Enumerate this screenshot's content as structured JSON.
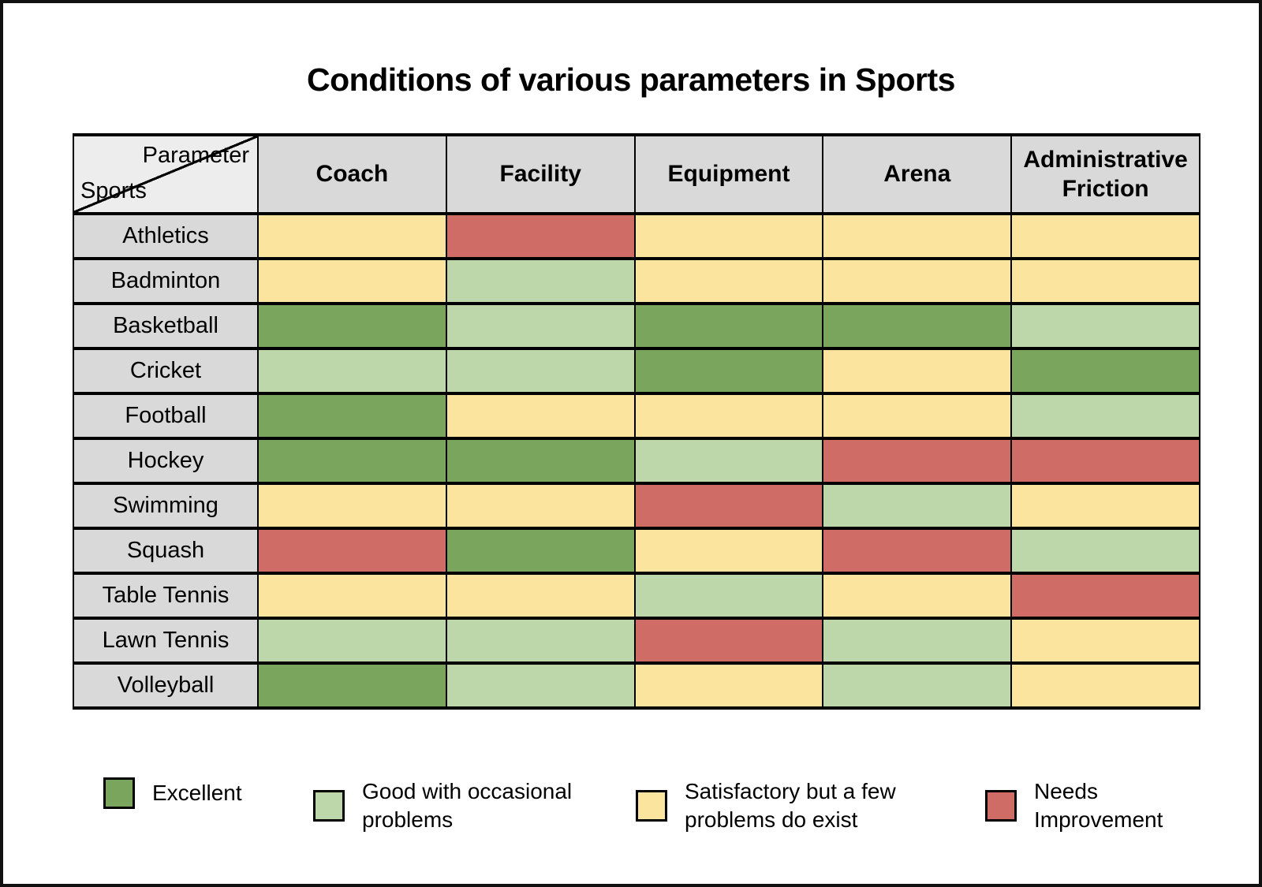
{
  "title": "Conditions of various parameters in Sports",
  "corner": {
    "top_label": "Parameter",
    "bottom_label": "Sports"
  },
  "chart_data": {
    "type": "heatmap",
    "title": "Conditions of various parameters in Sports",
    "columns": [
      "Coach",
      "Facility",
      "Equipment",
      "Arena",
      "Administrative Friction"
    ],
    "rows": [
      "Athletics",
      "Badminton",
      "Basketball",
      "Cricket",
      "Football",
      "Hockey",
      "Swimming",
      "Squash",
      "Table Tennis",
      "Lawn Tennis",
      "Volleyball"
    ],
    "values": [
      [
        "satisfactory",
        "needs",
        "satisfactory",
        "satisfactory",
        "satisfactory"
      ],
      [
        "satisfactory",
        "good",
        "satisfactory",
        "satisfactory",
        "satisfactory"
      ],
      [
        "excellent",
        "good",
        "excellent",
        "excellent",
        "good"
      ],
      [
        "good",
        "good",
        "excellent",
        "satisfactory",
        "excellent"
      ],
      [
        "excellent",
        "satisfactory",
        "satisfactory",
        "satisfactory",
        "good"
      ],
      [
        "excellent",
        "excellent",
        "good",
        "needs",
        "needs"
      ],
      [
        "satisfactory",
        "satisfactory",
        "needs",
        "good",
        "satisfactory"
      ],
      [
        "needs",
        "excellent",
        "satisfactory",
        "needs",
        "good"
      ],
      [
        "satisfactory",
        "satisfactory",
        "good",
        "satisfactory",
        "needs"
      ],
      [
        "good",
        "good",
        "needs",
        "good",
        "satisfactory"
      ],
      [
        "excellent",
        "good",
        "satisfactory",
        "good",
        "satisfactory"
      ]
    ],
    "legend": [
      {
        "key": "excellent",
        "label": "Excellent",
        "color": "#7aa55c"
      },
      {
        "key": "good",
        "label": "Good with occasional problems",
        "color": "#bdd6aa"
      },
      {
        "key": "satisfactory",
        "label": "Satisfactory but a few problems do exist",
        "color": "#fae49e"
      },
      {
        "key": "needs",
        "label": "Needs Improvement",
        "color": "#cf6c66"
      }
    ],
    "colors": {
      "header_bg": "#d9d9d9",
      "corner_bg": "#ededed",
      "grid_line": "#000000"
    },
    "legend_position": "bottom",
    "grid": true
  }
}
